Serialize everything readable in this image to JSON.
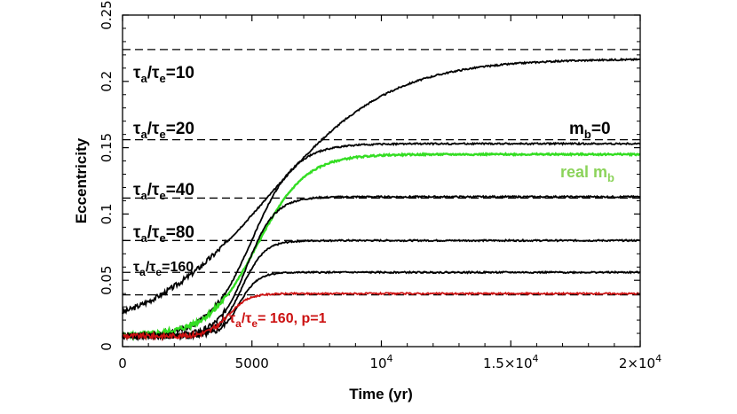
{
  "chart_data": {
    "type": "line",
    "xlabel": "Time (yr)",
    "ylabel": "Eccentricity",
    "xlim": [
      0,
      20000
    ],
    "ylim": [
      0,
      0.25
    ],
    "x_ticks": [
      {
        "value": 0,
        "label": "0"
      },
      {
        "value": 5000,
        "label": "5000"
      },
      {
        "value": 10000,
        "label": "10",
        "exp": "4"
      },
      {
        "value": 15000,
        "label": "1.5×10",
        "exp": "4"
      },
      {
        "value": 20000,
        "label": "2×10",
        "exp": "4"
      }
    ],
    "y_ticks": [
      {
        "value": 0,
        "label": "0"
      },
      {
        "value": 0.05,
        "label": "0.05"
      },
      {
        "value": 0.1,
        "label": "0.1"
      },
      {
        "value": 0.15,
        "label": "0.15"
      },
      {
        "value": 0.2,
        "label": "0.2"
      },
      {
        "value": 0.25,
        "label": "0.25"
      }
    ],
    "reference_lines": [
      {
        "name": "τa/τe=10",
        "y": 0.224
      },
      {
        "name": "τa/τe=20",
        "y": 0.156
      },
      {
        "name": "τa/τe=40",
        "y": 0.112
      },
      {
        "name": "τa/τe=80",
        "y": 0.08
      },
      {
        "name": "τa/τe=160",
        "y": 0.056
      }
    ],
    "extra_dashed_y": 0.039,
    "series": [
      {
        "name": "τa/τe=10",
        "color": "#000000",
        "asymptote": 0.217,
        "midpoint": 5600,
        "tau": 4300
      },
      {
        "name": "m_b=0",
        "color": "#000000",
        "asymptote": 0.153,
        "midpoint": 5000,
        "tau": 1500
      },
      {
        "name": "real m_b",
        "color": "#33dd22",
        "asymptote": 0.145,
        "midpoint": 5200,
        "tau": 1700
      },
      {
        "name": "τa/τe=40",
        "color": "#000000",
        "asymptote": 0.113,
        "midpoint": 4800,
        "tau": 1000
      },
      {
        "name": "τa/τe=80",
        "color": "#000000",
        "asymptote": 0.08,
        "midpoint": 4600,
        "tau": 800
      },
      {
        "name": "τa/τe=160",
        "color": "#000000",
        "asymptote": 0.056,
        "midpoint": 4500,
        "tau": 650
      },
      {
        "name": "τa/τe=160, p=1",
        "color": "#cc1111",
        "asymptote": 0.04,
        "midpoint": 4100,
        "tau": 700
      }
    ],
    "annotations": {
      "r10": {
        "main": "τ",
        "s1": "a",
        "mid": "/τ",
        "s2": "e",
        "tail": "=10"
      },
      "r20": {
        "main": "τ",
        "s1": "a",
        "mid": "/τ",
        "s2": "e",
        "tail": "=20"
      },
      "r40": {
        "main": "τ",
        "s1": "a",
        "mid": "/τ",
        "s2": "e",
        "tail": "=40"
      },
      "r80": {
        "main": "τ",
        "s1": "a",
        "mid": "/τ",
        "s2": "e",
        "tail": "=80"
      },
      "r160": {
        "main": "τ",
        "s1": "a",
        "mid": "/τ",
        "s2": "e",
        "tail": "=160"
      },
      "red": {
        "main": "τ",
        "s1": "a",
        "mid": "/τ",
        "s2": "e",
        "tail": "= 160, p=1"
      },
      "mb0": {
        "main": "m",
        "s1": "b",
        "tail": "=0"
      },
      "realmb": {
        "main": "real m",
        "s1": "b"
      }
    }
  }
}
